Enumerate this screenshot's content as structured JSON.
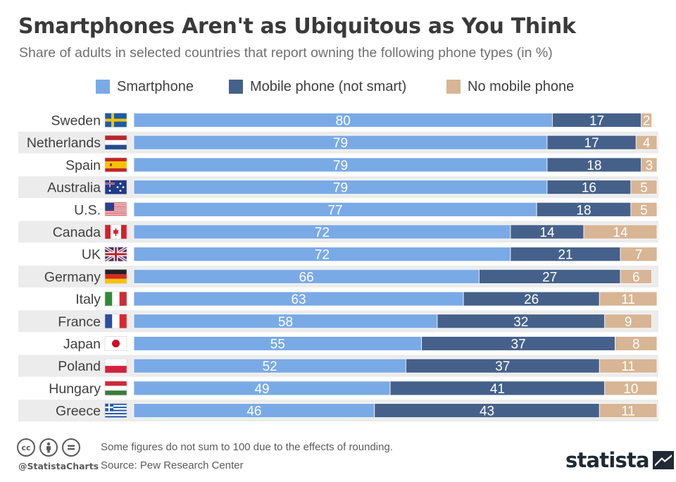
{
  "header": {
    "title": "Smartphones Aren't as Ubiquitous as You Think",
    "subtitle": "Share of adults in selected countries that report owning the following phone types (in %)"
  },
  "colors": {
    "smartphone": "#7aaae6",
    "mobile": "#45618a",
    "none": "#d8b594",
    "row_band": "#ececec"
  },
  "chart_data": {
    "type": "bar",
    "orientation": "horizontal",
    "stacked": true,
    "categories": [
      "Sweden",
      "Netherlands",
      "Spain",
      "Australia",
      "U.S.",
      "Canada",
      "UK",
      "Germany",
      "Italy",
      "France",
      "Japan",
      "Poland",
      "Hungary",
      "Greece"
    ],
    "series": [
      {
        "name": "Smartphone",
        "color": "#7aaae6",
        "values": [
          80,
          79,
          79,
          79,
          77,
          72,
          72,
          66,
          63,
          58,
          55,
          52,
          49,
          46
        ]
      },
      {
        "name": "Mobile phone (not smart)",
        "color": "#45618a",
        "values": [
          17,
          17,
          18,
          16,
          18,
          14,
          21,
          27,
          26,
          32,
          37,
          37,
          41,
          43
        ]
      },
      {
        "name": "No mobile phone",
        "color": "#d8b594",
        "values": [
          2,
          4,
          3,
          5,
          5,
          14,
          7,
          6,
          11,
          9,
          8,
          11,
          10,
          11
        ]
      }
    ],
    "xlim": [
      0,
      100
    ],
    "legend": "top",
    "grid": false,
    "flags": [
      "flag-sweden",
      "flag-netherlands",
      "flag-spain",
      "flag-australia",
      "flag-us",
      "flag-canada",
      "flag-uk",
      "flag-germany",
      "flag-italy",
      "flag-france",
      "flag-japan",
      "flag-poland",
      "flag-hungary",
      "flag-greece"
    ]
  },
  "footer": {
    "handle": "@StatistaCharts",
    "note": "Some figures do not sum to 100 due to the effects of rounding.",
    "source": "Source: Pew Research Center",
    "brand": "statista"
  }
}
